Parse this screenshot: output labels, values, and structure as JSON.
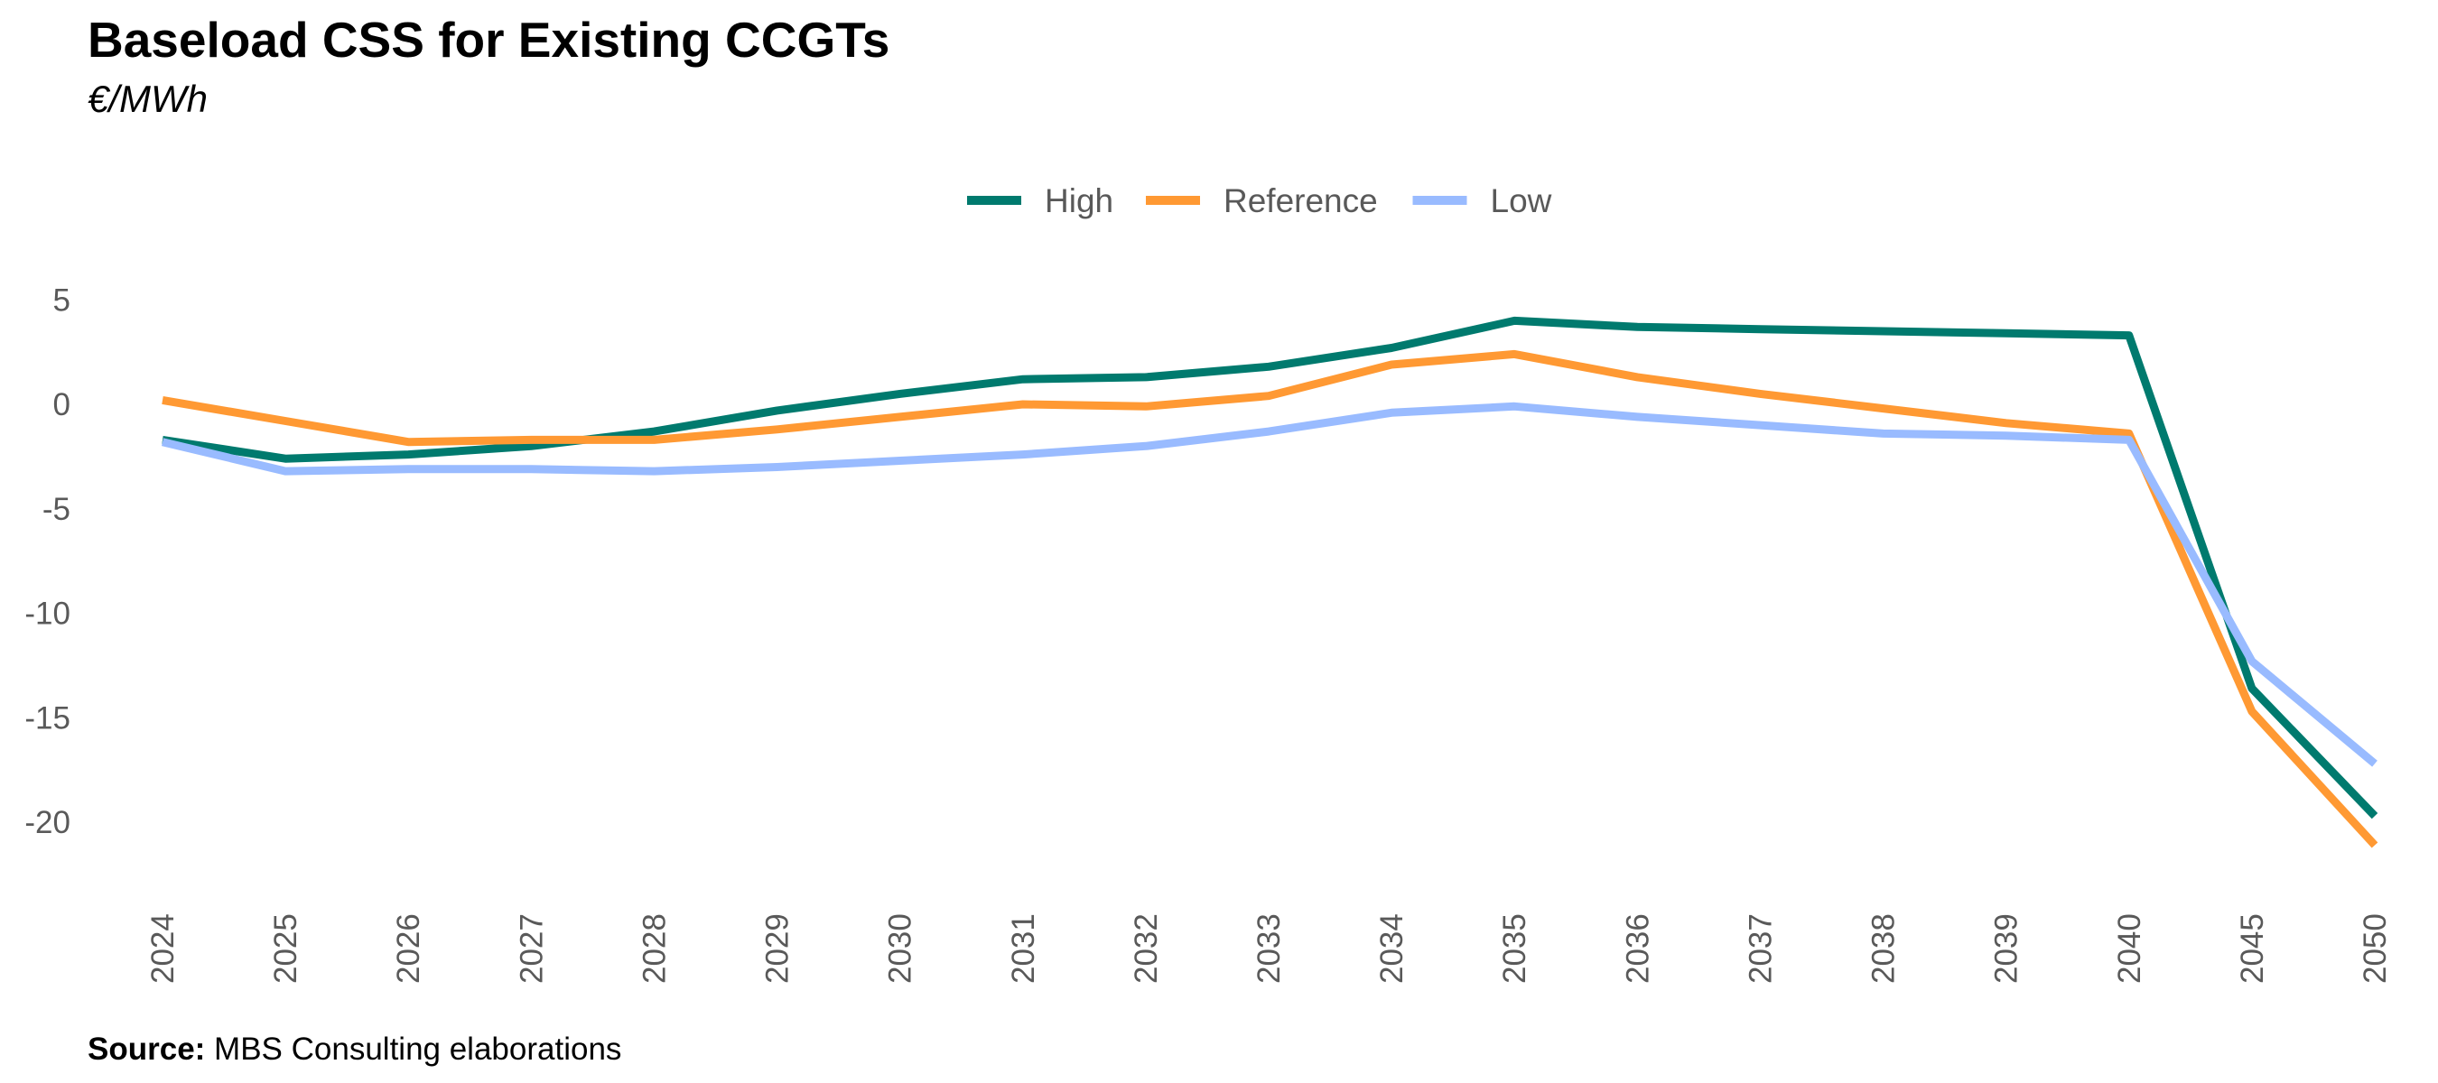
{
  "chart_data": {
    "type": "line",
    "title": "Baseload CSS for Existing CCGTs",
    "subtitle": "€/MWh",
    "xlabel": "",
    "ylabel": "",
    "categories": [
      "2024",
      "2025",
      "2026",
      "2027",
      "2028",
      "2029",
      "2030",
      "2031",
      "2032",
      "2033",
      "2034",
      "2035",
      "2036",
      "2037",
      "2038",
      "2039",
      "2040",
      "2045",
      "2050"
    ],
    "ylim": [
      -23,
      6
    ],
    "yticks": [
      5,
      0,
      -5,
      -10,
      -15,
      -20
    ],
    "grid": false,
    "legend": "top-center",
    "series": [
      {
        "name": "High",
        "color": "#007A6E",
        "values": [
          -1.7,
          -2.6,
          -2.4,
          -2.0,
          -1.3,
          -0.3,
          0.5,
          1.2,
          1.3,
          1.8,
          2.7,
          4.0,
          3.7,
          3.6,
          3.5,
          3.4,
          3.3,
          -13.6,
          -19.7
        ]
      },
      {
        "name": "Reference",
        "color": "#FF9933",
        "values": [
          0.2,
          -0.8,
          -1.8,
          -1.7,
          -1.7,
          -1.2,
          -0.6,
          0.0,
          -0.1,
          0.4,
          1.9,
          2.4,
          1.3,
          0.5,
          -0.2,
          -0.9,
          -1.4,
          -14.7,
          -21.1
        ]
      },
      {
        "name": "Low",
        "color": "#99BBFF",
        "values": [
          -1.8,
          -3.2,
          -3.1,
          -3.1,
          -3.2,
          -3.0,
          -2.7,
          -2.4,
          -2.0,
          -1.3,
          -0.4,
          -0.1,
          -0.6,
          -1.0,
          -1.4,
          -1.5,
          -1.7,
          -12.3,
          -17.2
        ]
      }
    ]
  },
  "source": {
    "label": "Source:",
    "text": "MBS Consulting elaborations"
  }
}
